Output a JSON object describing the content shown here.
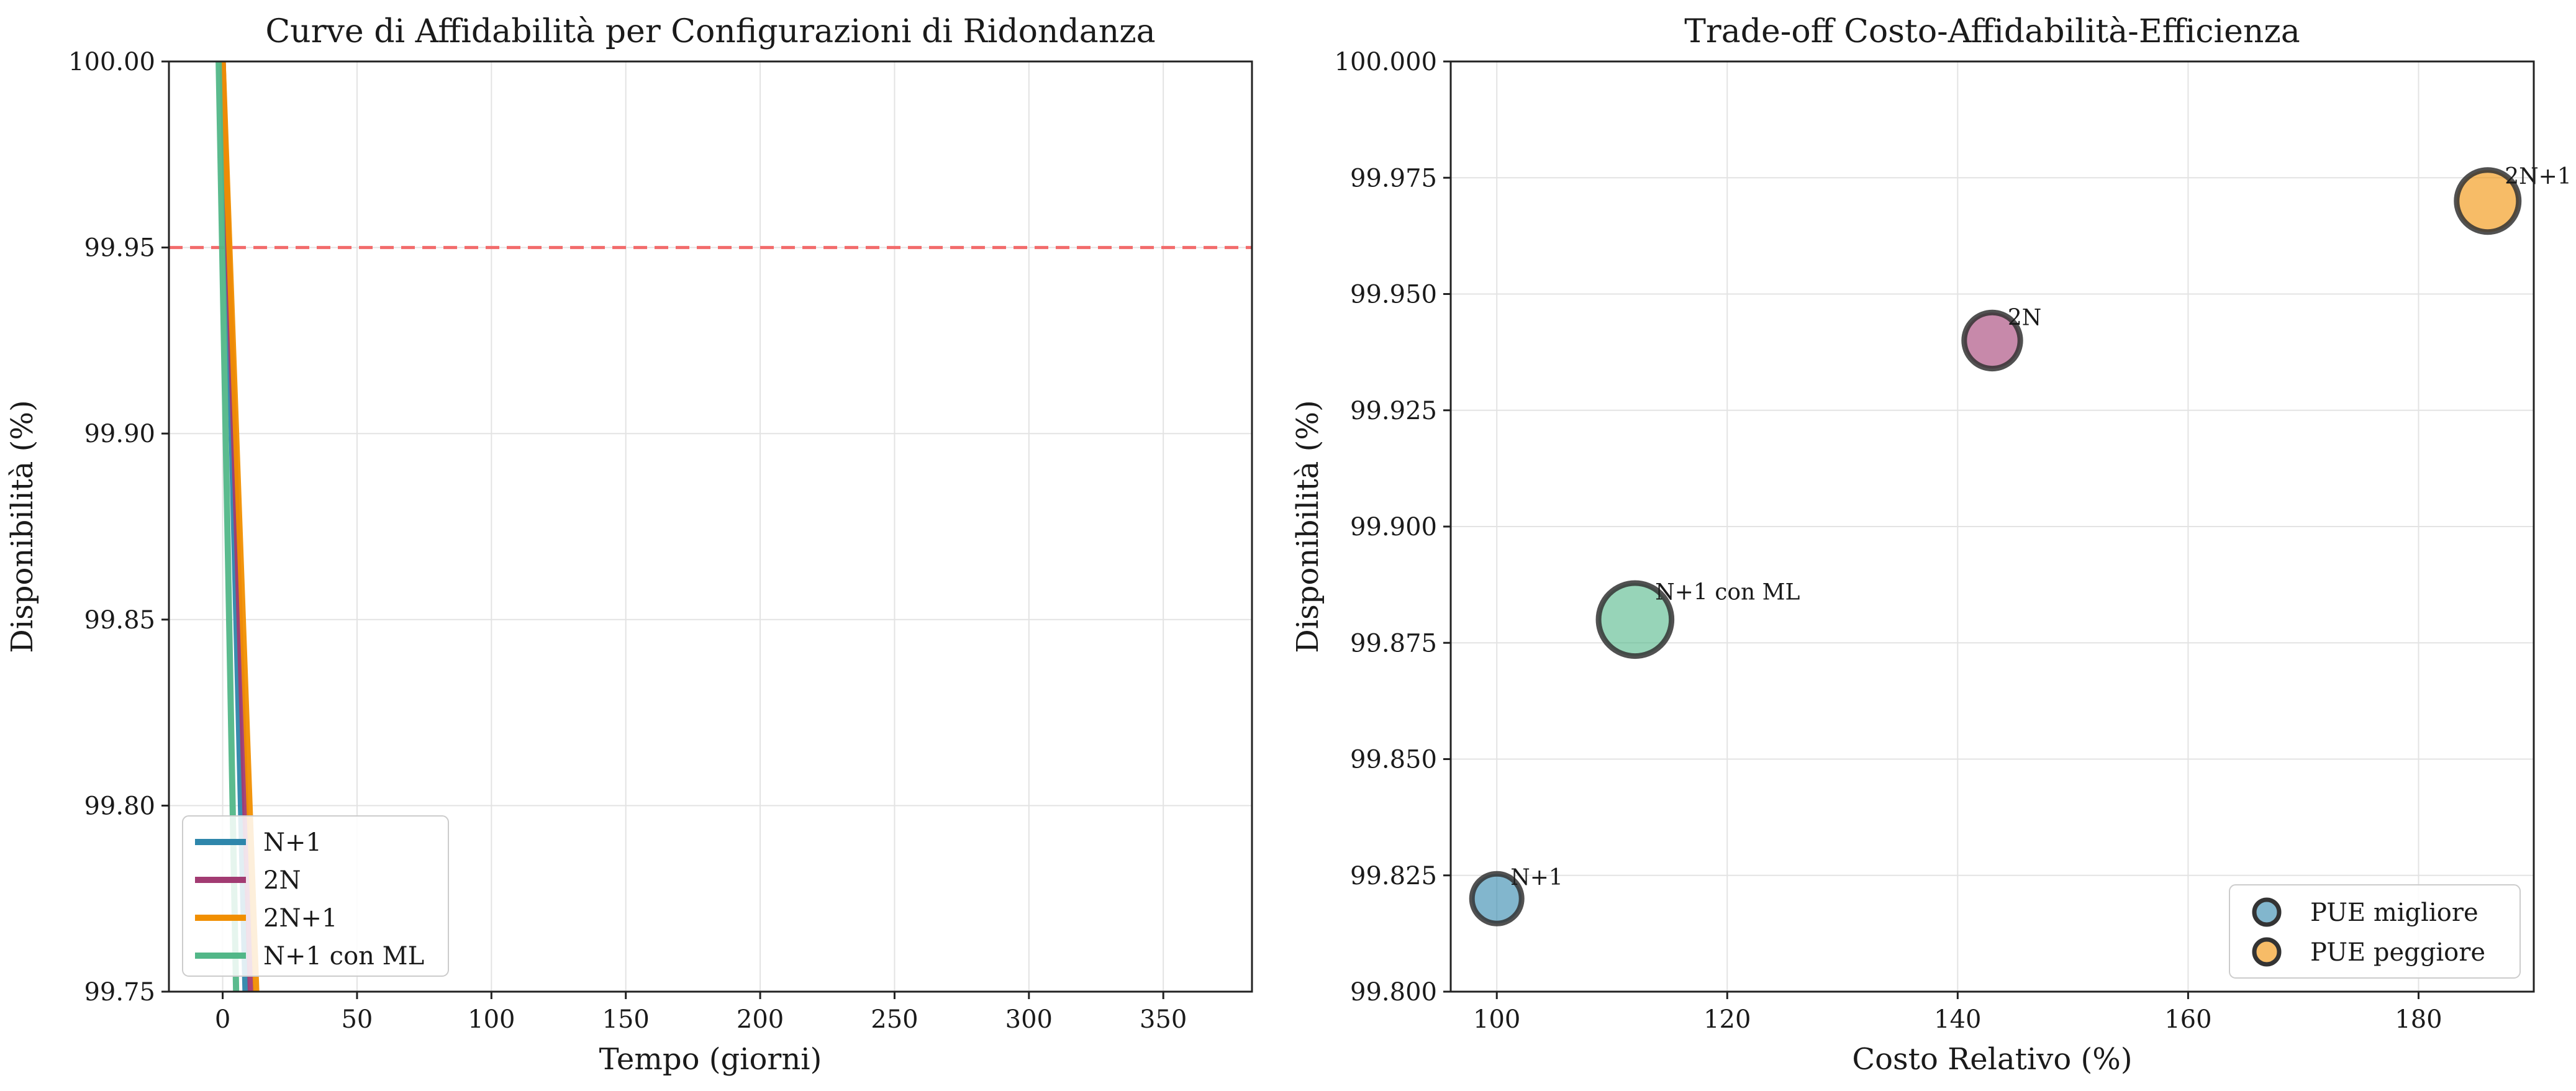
{
  "chart_data": [
    {
      "type": "line",
      "title": "Curve di Affidabilità per Configurazioni di Ridondanza",
      "xlabel": "Tempo (giorni)",
      "ylabel": "Disponibilità (%)",
      "xlim": [
        -20,
        383
      ],
      "ylim": [
        99.75,
        100.0
      ],
      "xticks": [
        0,
        50,
        100,
        150,
        200,
        250,
        300,
        350
      ],
      "yticks": [
        99.75,
        99.8,
        99.85,
        99.9,
        99.95,
        100.0
      ],
      "xtick_labels": [
        "0",
        "50",
        "100",
        "150",
        "200",
        "250",
        "300",
        "350"
      ],
      "ytick_labels": [
        "99.75",
        "99.80",
        "99.85",
        "99.90",
        "99.95",
        "100.00"
      ],
      "grid": true,
      "threshold_line": {
        "y": 99.95,
        "color": "#f26b6b",
        "style": "dashed"
      },
      "legend_position": "lower-left",
      "series": [
        {
          "name": "N+1",
          "color": "#2e86ab",
          "x": [
            0,
            8.5
          ],
          "y": [
            100.0,
            99.75
          ]
        },
        {
          "name": "2N",
          "color": "#a23b72",
          "x": [
            0,
            10.5
          ],
          "y": [
            100.0,
            99.75
          ]
        },
        {
          "name": "2N+1",
          "color": "#f18f01",
          "x": [
            0,
            12.5
          ],
          "y": [
            100.0,
            99.75
          ]
        },
        {
          "name": "N+1 con ML",
          "color": "#52b788",
          "x": [
            -2,
            5
          ],
          "y": [
            100.02,
            99.75
          ]
        }
      ]
    },
    {
      "type": "scatter",
      "title": "Trade-off Costo-Affidabilità-Efficienza",
      "xlabel": "Costo Relativo (%)",
      "ylabel": "Disponibilità (%)",
      "xlim": [
        96,
        190
      ],
      "ylim": [
        99.8,
        100.0
      ],
      "xticks": [
        100,
        120,
        140,
        160,
        180
      ],
      "yticks": [
        99.8,
        99.825,
        99.85,
        99.875,
        99.9,
        99.925,
        99.95,
        99.975,
        100.0
      ],
      "xtick_labels": [
        "100",
        "120",
        "140",
        "160",
        "180"
      ],
      "ytick_labels": [
        "99.800",
        "99.825",
        "99.850",
        "99.875",
        "99.900",
        "99.925",
        "99.950",
        "99.975",
        "100.000"
      ],
      "grid": true,
      "legend_position": "lower-right",
      "legend": [
        {
          "label": "PUE migliore",
          "color": "#2e86ab"
        },
        {
          "label": "PUE peggiore",
          "color": "#f18f01"
        }
      ],
      "points": [
        {
          "label": "N+1",
          "x": 100,
          "y": 99.82,
          "color": "#2e86ab",
          "size": 1.0
        },
        {
          "label": "2N",
          "x": 143,
          "y": 99.94,
          "color": "#a23b72",
          "size": 1.13
        },
        {
          "label": "2N+1",
          "x": 186,
          "y": 99.97,
          "color": "#f18f01",
          "size": 1.25
        },
        {
          "label": "N+1 con ML",
          "x": 112,
          "y": 99.88,
          "color": "#52b788",
          "size": 1.47
        }
      ]
    }
  ]
}
